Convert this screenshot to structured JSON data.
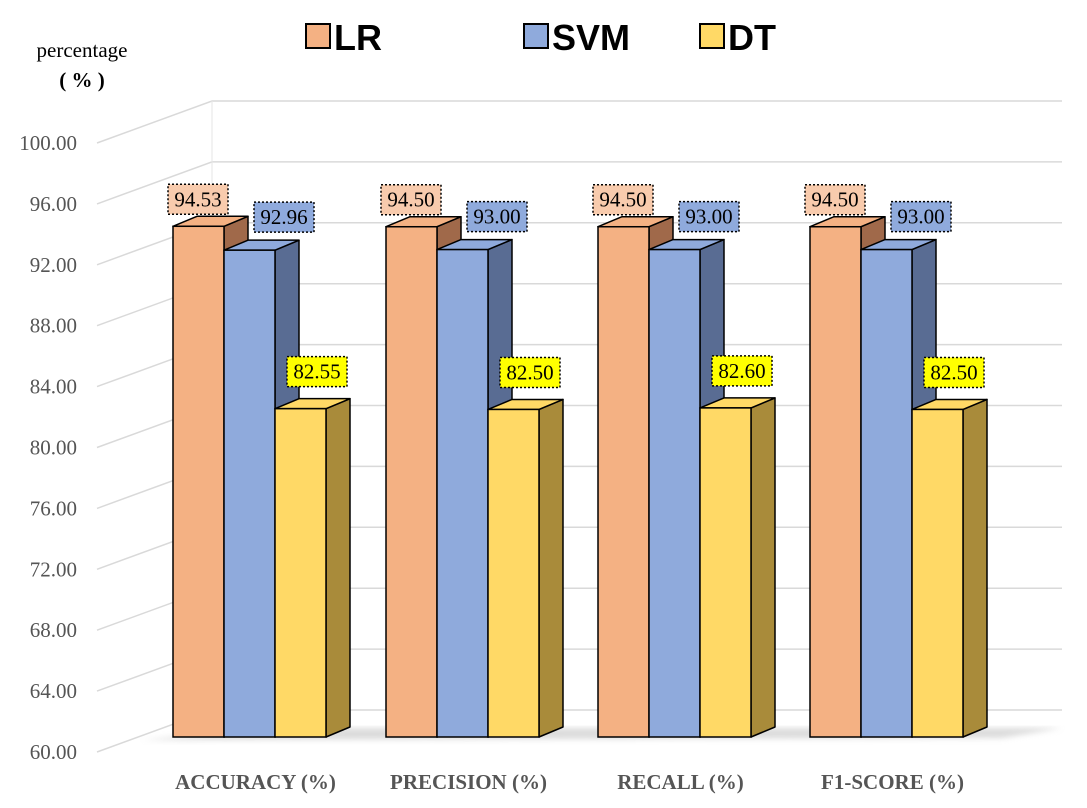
{
  "chart_data": {
    "type": "bar",
    "style": "3d-clustered-column",
    "categories": [
      "ACCURACY (%)",
      "PRECISION (%)",
      "RECALL (%)",
      "F1-SCORE (%)"
    ],
    "series": [
      {
        "name": "LR",
        "values": [
          94.53,
          94.5,
          94.5,
          94.5
        ],
        "labels": [
          "94.53",
          "94.50",
          "94.50",
          "94.50"
        ],
        "color": "#F4B183",
        "side_color": "#A0694A",
        "label_bg": "#F8CBAD"
      },
      {
        "name": "SVM",
        "values": [
          92.96,
          93.0,
          93.0,
          93.0
        ],
        "labels": [
          "92.96",
          "93.00",
          "93.00",
          "93.00"
        ],
        "color": "#8FAADC",
        "side_color": "#596C93",
        "label_bg": "#8FAADC"
      },
      {
        "name": "DT",
        "values": [
          82.55,
          82.5,
          82.6,
          82.5
        ],
        "labels": [
          "82.55",
          "82.50",
          "82.60",
          "82.50"
        ],
        "color": "#FFD966",
        "side_color": "#A98B3A",
        "label_bg": "#FFFF00"
      }
    ],
    "ylabel": "percentage",
    "ylabel_unit": "( % )",
    "ylim": [
      60,
      100
    ],
    "yticks": [
      "60.00",
      "64.00",
      "68.00",
      "72.00",
      "76.00",
      "80.00",
      "84.00",
      "88.00",
      "92.00",
      "96.00",
      "100.00"
    ],
    "ytick_step": 4,
    "grid": true,
    "legend_position": "top-center"
  }
}
